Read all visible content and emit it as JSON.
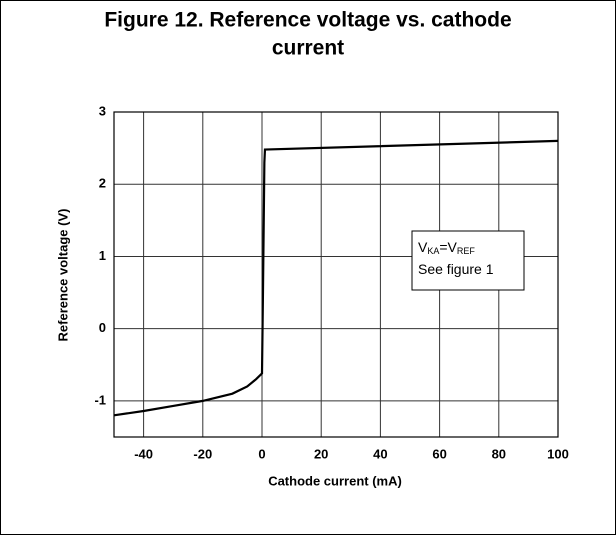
{
  "chart_data": {
    "type": "line",
    "title_lines": [
      "Figure 12. Reference voltage vs. cathode",
      "current"
    ],
    "x_label": "Cathode current (mA)",
    "y_label": "Reference voltage (V)",
    "x": [
      -50,
      -40,
      -30,
      -20,
      -10,
      -5,
      -2,
      0,
      0.3,
      0.8,
      1,
      100
    ],
    "series": [
      {
        "color": "#000000",
        "values": [
          -1.2,
          -1.14,
          -1.07,
          -1.0,
          -0.9,
          -0.8,
          -0.7,
          -0.62,
          0.4,
          2.3,
          2.48,
          2.6
        ]
      }
    ],
    "xlim": [
      -50,
      100
    ],
    "xticks": [
      -40,
      -20,
      0,
      20,
      40,
      60,
      80,
      100
    ],
    "ylim": [
      -1.5,
      3
    ],
    "yticks": [
      -1,
      0,
      1,
      2,
      3
    ],
    "grid": true,
    "annotation": [
      [
        {
          "text": "V"
        },
        {
          "text": "KA",
          "sub": true
        },
        {
          "text": "=V"
        },
        {
          "text": "REF",
          "sub": true
        }
      ],
      [
        {
          "text": "See figure 1"
        }
      ]
    ]
  }
}
